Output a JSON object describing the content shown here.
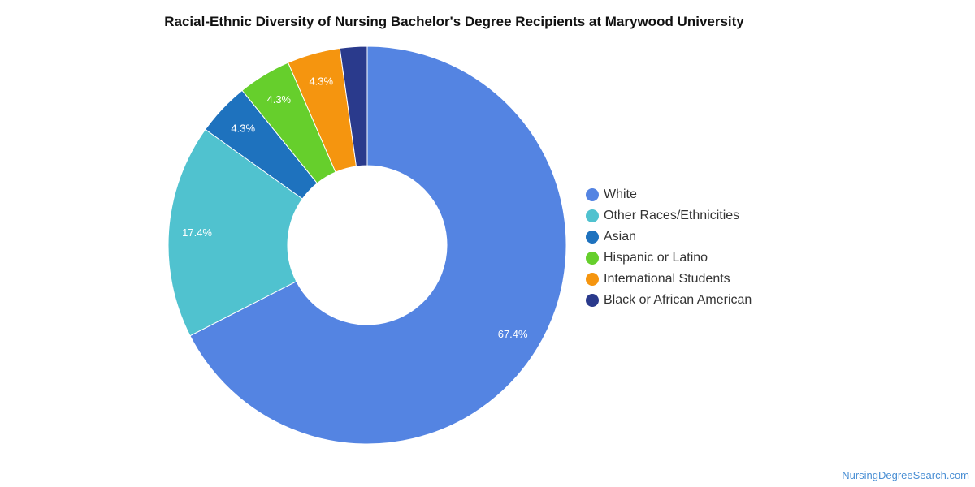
{
  "chart_data": {
    "type": "pie",
    "variant": "donut",
    "title": "Racial-Ethnic Diversity of Nursing Bachelor's Degree Recipients at Marywood University",
    "categories": [
      "White",
      "Other Races/Ethnicities",
      "Asian",
      "Hispanic or Latino",
      "International Students",
      "Black or African American"
    ],
    "values": [
      67.4,
      17.4,
      4.3,
      4.3,
      4.3,
      2.2
    ],
    "data_labels": [
      "67.4%",
      "17.4%",
      "4.3%",
      "4.3%",
      "4.3%",
      ""
    ],
    "colors": [
      "#5484e2",
      "#50c2cf",
      "#1e72be",
      "#66cf2c",
      "#f5950f",
      "#2a3a8c"
    ],
    "legend_position": "right"
  },
  "watermark": "NursingDegreeSearch.com"
}
